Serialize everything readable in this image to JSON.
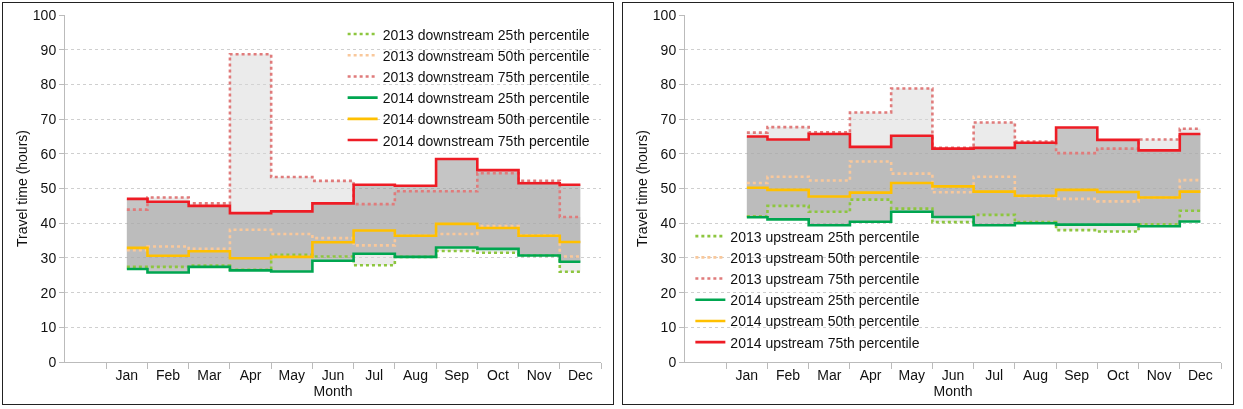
{
  "chart_data": [
    {
      "type": "step",
      "xlabel": "Month",
      "ylabel": "Travel time (hours)",
      "categories": [
        "Jan",
        "Feb",
        "Mar",
        "Apr",
        "May",
        "Jun",
        "Jul",
        "Aug",
        "Sep",
        "Oct",
        "Nov",
        "Dec"
      ],
      "ylim": [
        0,
        100
      ],
      "yticks": [
        0,
        10,
        20,
        30,
        40,
        50,
        60,
        70,
        80,
        90,
        100
      ],
      "grid": "y",
      "legend": "top right",
      "series": [
        {
          "name": "2013 downstream 25th percentile",
          "color": "#8dc63f",
          "line_style": "dotted",
          "values": [
            27.4,
            27.4,
            27.8,
            26.6,
            30.9,
            30.4,
            27.9,
            30.3,
            32.0,
            31.5,
            30.7,
            26.0
          ]
        },
        {
          "name": "2013 downstream 50th percentile",
          "color": "#f9c89b",
          "line_style": "dotted",
          "values": [
            32.2,
            33.3,
            32.6,
            38.1,
            36.9,
            35.7,
            33.6,
            36.4,
            36.9,
            39.2,
            36.5,
            30.4
          ],
          "lower": [
            27.4,
            27.4,
            27.8,
            26.6,
            30.9,
            30.4,
            27.9,
            30.3,
            32.0,
            31.5,
            30.7,
            26.0
          ],
          "upper": [
            43.9,
            47.4,
            45.7,
            88.7,
            53.3,
            52.2,
            45.5,
            49.2,
            49.2,
            54.4,
            52.2,
            41.8
          ]
        },
        {
          "name": "2013 downstream 75th percentile",
          "color": "#e07b7b",
          "line_style": "dotted",
          "values": [
            43.9,
            47.4,
            45.7,
            88.7,
            53.3,
            52.2,
            45.5,
            49.2,
            49.2,
            54.4,
            52.2,
            41.8
          ]
        },
        {
          "name": "2014 downstream 25th percentile",
          "color": "#00a650",
          "line_style": "solid",
          "values": [
            26.8,
            25.8,
            27.4,
            26.4,
            26.1,
            29.2,
            31.2,
            30.3,
            33.0,
            32.6,
            30.7,
            28.9
          ]
        },
        {
          "name": "2014 downstream 50th percentile",
          "color": "#ffc000",
          "line_style": "solid",
          "values": [
            32.9,
            30.6,
            31.9,
            29.9,
            30.3,
            34.5,
            37.9,
            36.4,
            39.8,
            38.6,
            36.4,
            34.6
          ],
          "lower": [
            26.8,
            25.8,
            27.4,
            26.4,
            26.1,
            29.2,
            31.2,
            30.3,
            33.0,
            32.6,
            30.7,
            28.9
          ],
          "upper": [
            47.0,
            46.2,
            45.0,
            42.9,
            43.4,
            45.7,
            51.1,
            50.8,
            58.5,
            55.3,
            51.5,
            51.1
          ]
        },
        {
          "name": "2014 downstream 75th percentile",
          "color": "#ee1c25",
          "line_style": "solid",
          "values": [
            47.0,
            46.2,
            45.0,
            42.9,
            43.4,
            45.7,
            51.1,
            50.8,
            58.5,
            55.3,
            51.5,
            51.1
          ]
        }
      ]
    },
    {
      "type": "step",
      "xlabel": "Month",
      "ylabel": "Travel time (hours)",
      "categories": [
        "Jan",
        "Feb",
        "Mar",
        "Apr",
        "May",
        "Jun",
        "Jul",
        "Aug",
        "Sep",
        "Oct",
        "Nov",
        "Dec"
      ],
      "ylim": [
        0,
        100
      ],
      "yticks": [
        0,
        10,
        20,
        30,
        40,
        50,
        60,
        70,
        80,
        90,
        100
      ],
      "grid": "y",
      "legend": "bottom left",
      "series": [
        {
          "name": "2013 upstream 25th percentile",
          "color": "#8dc63f",
          "line_style": "dotted",
          "values": [
            42.0,
            45.0,
            43.3,
            46.8,
            44.2,
            40.3,
            42.4,
            40.3,
            38.0,
            37.6,
            39.7,
            43.6
          ]
        },
        {
          "name": "2013 upstream 50th percentile",
          "color": "#f9c89b",
          "line_style": "dotted",
          "values": [
            51.6,
            53.4,
            52.3,
            57.8,
            54.3,
            48.9,
            53.4,
            47.8,
            47.0,
            46.3,
            47.4,
            52.4
          ],
          "lower": [
            42.0,
            45.0,
            43.3,
            46.8,
            44.2,
            40.3,
            42.4,
            40.3,
            38.0,
            37.6,
            39.7,
            43.6
          ],
          "upper": [
            66.1,
            67.7,
            66.2,
            71.9,
            78.8,
            61.7,
            69.0,
            63.5,
            60.2,
            61.5,
            64.1,
            67.2
          ]
        },
        {
          "name": "2013 upstream 75th percentile",
          "color": "#e07b7b",
          "line_style": "dotted",
          "values": [
            66.1,
            67.7,
            66.2,
            71.9,
            78.8,
            61.7,
            69.0,
            63.5,
            60.2,
            61.5,
            64.1,
            67.2
          ]
        },
        {
          "name": "2014 upstream 25th percentile",
          "color": "#00a650",
          "line_style": "solid",
          "values": [
            41.7,
            41.1,
            39.4,
            40.4,
            43.3,
            41.8,
            39.4,
            40.0,
            39.6,
            39.6,
            39.1,
            40.5
          ]
        },
        {
          "name": "2014 upstream 50th percentile",
          "color": "#ffc000",
          "line_style": "solid",
          "values": [
            50.2,
            49.6,
            47.7,
            48.8,
            51.6,
            50.6,
            49.1,
            47.9,
            49.6,
            49.0,
            47.4,
            49.1
          ],
          "lower": [
            41.7,
            41.1,
            39.4,
            40.4,
            43.3,
            41.8,
            39.4,
            40.0,
            39.6,
            39.6,
            39.1,
            40.5
          ],
          "upper": [
            65.0,
            64.1,
            65.7,
            62.0,
            65.2,
            61.5,
            61.7,
            63.2,
            67.6,
            64.0,
            61.0,
            65.7
          ]
        },
        {
          "name": "2014 upstream 75th percentile",
          "color": "#ee1c25",
          "line_style": "solid",
          "values": [
            65.0,
            64.1,
            65.7,
            62.0,
            65.2,
            61.5,
            61.7,
            63.2,
            67.6,
            64.0,
            61.0,
            65.7
          ]
        }
      ]
    }
  ]
}
